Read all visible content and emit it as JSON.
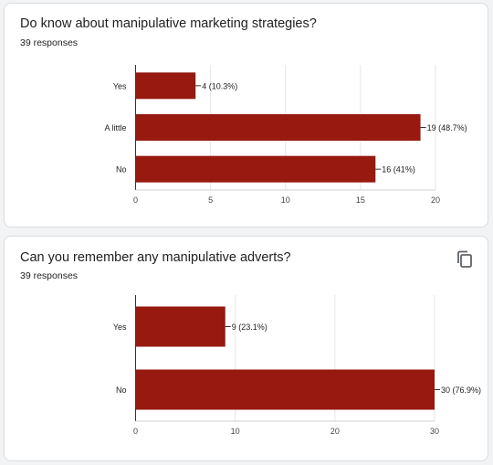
{
  "questions": [
    {
      "title": "Do know about manipulative marketing strategies?",
      "responses": "39 responses",
      "chart_data": {
        "type": "bar",
        "orientation": "horizontal",
        "categories": [
          "Yes",
          "A little",
          "No"
        ],
        "values": [
          4,
          19,
          16
        ],
        "data_labels": [
          "4 (10.3%)",
          "19 (48.7%)",
          "16 (41%)"
        ],
        "xlim": [
          0,
          20
        ],
        "xticks": [
          0,
          5,
          10,
          15,
          20
        ],
        "grid": true,
        "bar_color": "#97190f"
      }
    },
    {
      "title": "Can you remember any manipulative adverts?",
      "responses": "39 responses",
      "copy_icon": "copy-icon",
      "chart_data": {
        "type": "bar",
        "orientation": "horizontal",
        "categories": [
          "Yes",
          "No"
        ],
        "values": [
          9,
          30
        ],
        "data_labels": [
          "9 (23.1%)",
          "30 (76.9%)"
        ],
        "xlim": [
          0,
          30
        ],
        "xticks": [
          0,
          10,
          20,
          30
        ],
        "grid": true,
        "bar_color": "#97190f"
      }
    }
  ]
}
